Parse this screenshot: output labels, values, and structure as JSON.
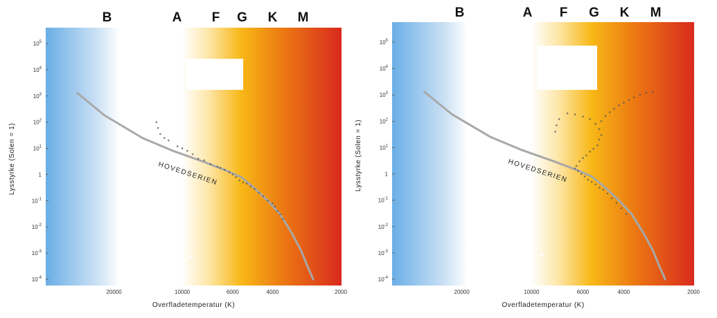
{
  "chart_data": [
    {
      "type": "scatter",
      "spectral_classes": [
        "B",
        "A",
        "F",
        "G",
        "K",
        "M"
      ],
      "xlabel": "Overfladetemperatur (K)",
      "ylabel": "Lysstyrke (Solen = 1)",
      "x_scale": "log",
      "x_reversed": true,
      "xlim": [
        40000,
        2000
      ],
      "y_scale": "log",
      "ylim": [
        5e-05,
        300000
      ],
      "x_ticks": [
        {
          "value": 20000,
          "label": "20000"
        },
        {
          "value": 10000,
          "label": "10000"
        },
        {
          "value": 6000,
          "label": "6000"
        },
        {
          "value": 4000,
          "label": "4000"
        },
        {
          "value": 2000,
          "label": "2000"
        }
      ],
      "y_ticks": [
        {
          "value": 0.0001,
          "base": "10",
          "exp": "-4"
        },
        {
          "value": 0.001,
          "base": "10",
          "exp": "-3"
        },
        {
          "value": 0.01,
          "base": "10",
          "exp": "-2"
        },
        {
          "value": 0.1,
          "base": "10",
          "exp": "-1"
        },
        {
          "value": 1,
          "base": "1",
          "exp": ""
        },
        {
          "value": 10,
          "base": "10",
          "exp": "1"
        },
        {
          "value": 100,
          "base": "10",
          "exp": "2"
        },
        {
          "value": 1000,
          "base": "10",
          "exp": "3"
        },
        {
          "value": 10000,
          "base": "10",
          "exp": "4"
        },
        {
          "value": 100000,
          "base": "10",
          "exp": "5"
        }
      ],
      "main_sequence_label": "HOVEDSERIEN",
      "main_sequence": [
        [
          29000,
          1300
        ],
        [
          22000,
          180
        ],
        [
          15000,
          25
        ],
        [
          11000,
          8
        ],
        [
          8000,
          3
        ],
        [
          6500,
          1.5
        ],
        [
          5500,
          0.8
        ],
        [
          4800,
          0.3
        ],
        [
          4200,
          0.1
        ],
        [
          3700,
          0.03
        ],
        [
          3300,
          0.006
        ],
        [
          3000,
          0.0013
        ],
        [
          2800,
          0.0003
        ],
        [
          2650,
          0.0001
        ]
      ],
      "stars": [
        [
          13000,
          100
        ],
        [
          12800,
          60
        ],
        [
          12500,
          35
        ],
        [
          12000,
          25
        ],
        [
          11500,
          20
        ],
        [
          10500,
          12
        ],
        [
          10000,
          10
        ],
        [
          9500,
          8
        ],
        [
          9000,
          6
        ],
        [
          8500,
          4
        ],
        [
          8000,
          3.5
        ],
        [
          7500,
          2.5
        ],
        [
          7000,
          2
        ],
        [
          6800,
          1.8
        ],
        [
          6500,
          1.5
        ],
        [
          6200,
          1.2
        ],
        [
          6000,
          1
        ],
        [
          5800,
          0.8
        ],
        [
          5600,
          0.6
        ],
        [
          5400,
          0.5
        ],
        [
          5200,
          0.45
        ],
        [
          5000,
          0.35
        ],
        [
          4800,
          0.28
        ],
        [
          4600,
          0.2
        ],
        [
          4400,
          0.15
        ],
        [
          4200,
          0.1
        ],
        [
          4000,
          0.08
        ],
        [
          3900,
          0.06
        ],
        [
          3800,
          0.04
        ],
        [
          3700,
          0.03
        ],
        [
          3600,
          0.02
        ]
      ]
    },
    {
      "type": "scatter",
      "spectral_classes": [
        "B",
        "A",
        "F",
        "G",
        "K",
        "M"
      ],
      "xlabel": "Overfladetemperatur (K)",
      "ylabel": "Lysstyrke (Solen = 1)",
      "x_scale": "log",
      "x_reversed": true,
      "xlim": [
        40000,
        2000
      ],
      "y_scale": "log",
      "ylim": [
        5e-05,
        300000
      ],
      "x_ticks": [
        {
          "value": 20000,
          "label": "20000"
        },
        {
          "value": 10000,
          "label": "10000"
        },
        {
          "value": 6000,
          "label": "6000"
        },
        {
          "value": 4000,
          "label": "4000"
        },
        {
          "value": 2000,
          "label": "2000"
        }
      ],
      "y_ticks": [
        {
          "value": 0.0001,
          "base": "10",
          "exp": "-4"
        },
        {
          "value": 0.001,
          "base": "10",
          "exp": "-3"
        },
        {
          "value": 0.01,
          "base": "10",
          "exp": "-2"
        },
        {
          "value": 0.1,
          "base": "10",
          "exp": "-1"
        },
        {
          "value": 1,
          "base": "1",
          "exp": ""
        },
        {
          "value": 10,
          "base": "10",
          "exp": "1"
        },
        {
          "value": 100,
          "base": "10",
          "exp": "2"
        },
        {
          "value": 1000,
          "base": "10",
          "exp": "3"
        },
        {
          "value": 10000,
          "base": "10",
          "exp": "4"
        },
        {
          "value": 100000,
          "base": "10",
          "exp": "5"
        }
      ],
      "main_sequence_label": "HOVEDSERIEN",
      "main_sequence": [
        [
          29000,
          1300
        ],
        [
          22000,
          180
        ],
        [
          15000,
          25
        ],
        [
          11000,
          8
        ],
        [
          8000,
          3
        ],
        [
          6500,
          1.5
        ],
        [
          5500,
          0.8
        ],
        [
          4800,
          0.3
        ],
        [
          4200,
          0.1
        ],
        [
          3700,
          0.03
        ],
        [
          3300,
          0.006
        ],
        [
          3000,
          0.0013
        ],
        [
          2800,
          0.0003
        ],
        [
          2650,
          0.0001
        ]
      ],
      "stars": [
        [
          6500,
          1.6
        ],
        [
          6300,
          1.3
        ],
        [
          6100,
          1
        ],
        [
          5900,
          0.8
        ],
        [
          5700,
          0.6
        ],
        [
          5500,
          0.5
        ],
        [
          5300,
          0.4
        ],
        [
          5100,
          0.3
        ],
        [
          4900,
          0.25
        ],
        [
          4700,
          0.18
        ],
        [
          4500,
          0.12
        ],
        [
          4300,
          0.08
        ],
        [
          4100,
          0.05
        ],
        [
          3900,
          0.03
        ],
        [
          6400,
          2
        ],
        [
          6200,
          3
        ],
        [
          6000,
          4
        ],
        [
          5800,
          5
        ],
        [
          5600,
          7
        ],
        [
          5400,
          9
        ],
        [
          5200,
          12
        ],
        [
          5100,
          20
        ],
        [
          5000,
          30
        ],
        [
          5100,
          50
        ],
        [
          5300,
          80
        ],
        [
          5600,
          120
        ],
        [
          6000,
          150
        ],
        [
          6500,
          180
        ],
        [
          7000,
          200
        ],
        [
          7600,
          120
        ],
        [
          7800,
          70
        ],
        [
          7900,
          40
        ],
        [
          5000,
          100
        ],
        [
          4800,
          160
        ],
        [
          4600,
          220
        ],
        [
          4400,
          300
        ],
        [
          4200,
          400
        ],
        [
          4000,
          500
        ],
        [
          3800,
          650
        ],
        [
          3600,
          800
        ],
        [
          3400,
          1000
        ],
        [
          3200,
          1200
        ],
        [
          3000,
          1300
        ]
      ]
    }
  ]
}
